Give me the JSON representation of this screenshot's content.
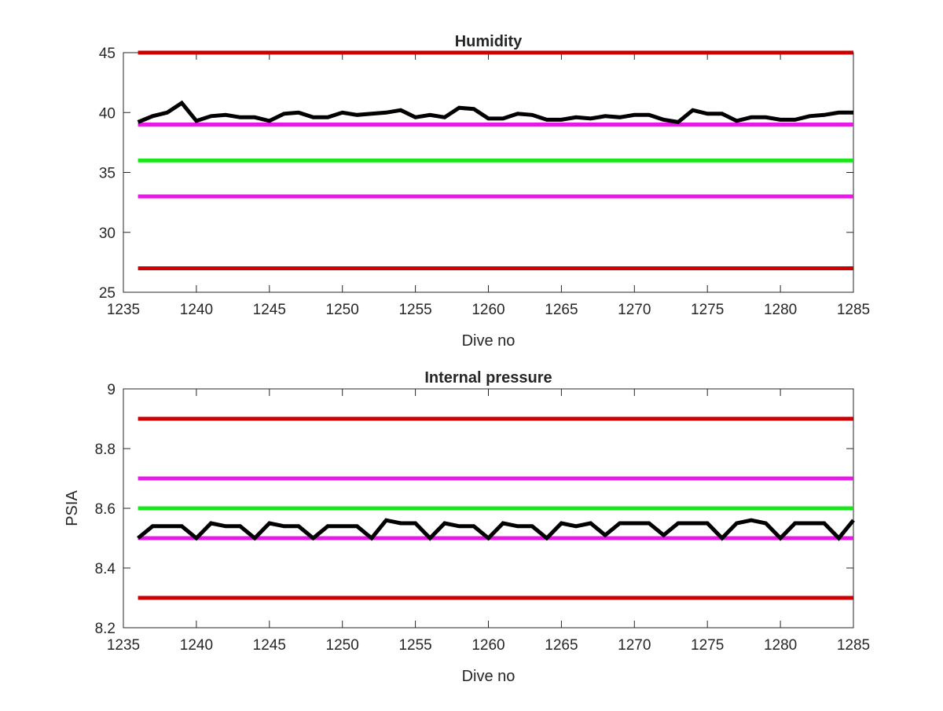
{
  "chart_data": [
    {
      "type": "line",
      "title": "Humidity",
      "xlabel": "Dive no",
      "ylabel": "",
      "xlim": [
        1235,
        1285
      ],
      "ylim": [
        25,
        45
      ],
      "xticks": [
        1235,
        1240,
        1245,
        1250,
        1255,
        1260,
        1265,
        1270,
        1275,
        1280,
        1285
      ],
      "yticks": [
        25,
        30,
        35,
        40,
        45
      ],
      "grid": false,
      "reference_lines": [
        {
          "y": 45,
          "color": "#cc0000"
        },
        {
          "y": 39,
          "color": "#e619e6"
        },
        {
          "y": 36,
          "color": "#19e619"
        },
        {
          "y": 33,
          "color": "#e619e6"
        },
        {
          "y": 27,
          "color": "#cc0000"
        }
      ],
      "series": [
        {
          "color": "#000000",
          "x": [
            1236,
            1237,
            1238,
            1239,
            1240,
            1241,
            1242,
            1243,
            1244,
            1245,
            1246,
            1247,
            1248,
            1249,
            1250,
            1251,
            1252,
            1253,
            1254,
            1255,
            1256,
            1257,
            1258,
            1259,
            1260,
            1261,
            1262,
            1263,
            1264,
            1265,
            1266,
            1267,
            1268,
            1269,
            1270,
            1271,
            1272,
            1273,
            1274,
            1275,
            1276,
            1277,
            1278,
            1279,
            1280,
            1281,
            1282,
            1283,
            1284,
            1285
          ],
          "values": [
            39.2,
            39.7,
            40.0,
            40.8,
            39.3,
            39.7,
            39.8,
            39.6,
            39.6,
            39.3,
            39.9,
            40.0,
            39.6,
            39.6,
            40.0,
            39.8,
            39.9,
            40.0,
            40.2,
            39.6,
            39.8,
            39.6,
            40.4,
            40.3,
            39.5,
            39.5,
            39.9,
            39.8,
            39.4,
            39.4,
            39.6,
            39.5,
            39.7,
            39.6,
            39.8,
            39.8,
            39.4,
            39.2,
            40.2,
            39.9,
            39.9,
            39.3,
            39.6,
            39.6,
            39.4,
            39.4,
            39.7,
            39.8,
            40.0,
            40.0
          ]
        }
      ]
    },
    {
      "type": "line",
      "title": "Internal pressure",
      "xlabel": "Dive no",
      "ylabel": "PSIA",
      "xlim": [
        1235,
        1285
      ],
      "ylim": [
        8.2,
        9.0
      ],
      "xticks": [
        1235,
        1240,
        1245,
        1250,
        1255,
        1260,
        1265,
        1270,
        1275,
        1280,
        1285
      ],
      "yticks": [
        8.2,
        8.4,
        8.6,
        8.8,
        9.0
      ],
      "ytick_labels": [
        "8.2",
        "8.4",
        "8.6",
        "8.8",
        "9"
      ],
      "grid": false,
      "reference_lines": [
        {
          "y": 8.9,
          "color": "#cc0000"
        },
        {
          "y": 8.7,
          "color": "#e619e6"
        },
        {
          "y": 8.6,
          "color": "#19e619"
        },
        {
          "y": 8.5,
          "color": "#e619e6"
        },
        {
          "y": 8.3,
          "color": "#cc0000"
        }
      ],
      "series": [
        {
          "color": "#000000",
          "x": [
            1236,
            1237,
            1238,
            1239,
            1240,
            1241,
            1242,
            1243,
            1244,
            1245,
            1246,
            1247,
            1248,
            1249,
            1250,
            1251,
            1252,
            1253,
            1254,
            1255,
            1256,
            1257,
            1258,
            1259,
            1260,
            1261,
            1262,
            1263,
            1264,
            1265,
            1266,
            1267,
            1268,
            1269,
            1270,
            1271,
            1272,
            1273,
            1274,
            1275,
            1276,
            1277,
            1278,
            1279,
            1280,
            1281,
            1282,
            1283,
            1284,
            1285
          ],
          "values": [
            8.5,
            8.54,
            8.54,
            8.54,
            8.5,
            8.55,
            8.54,
            8.54,
            8.5,
            8.55,
            8.54,
            8.54,
            8.5,
            8.54,
            8.54,
            8.54,
            8.5,
            8.56,
            8.55,
            8.55,
            8.5,
            8.55,
            8.54,
            8.54,
            8.5,
            8.55,
            8.54,
            8.54,
            8.5,
            8.55,
            8.54,
            8.55,
            8.51,
            8.55,
            8.55,
            8.55,
            8.51,
            8.55,
            8.55,
            8.55,
            8.5,
            8.55,
            8.56,
            8.55,
            8.5,
            8.55,
            8.55,
            8.55,
            8.5,
            8.56
          ]
        }
      ]
    }
  ]
}
